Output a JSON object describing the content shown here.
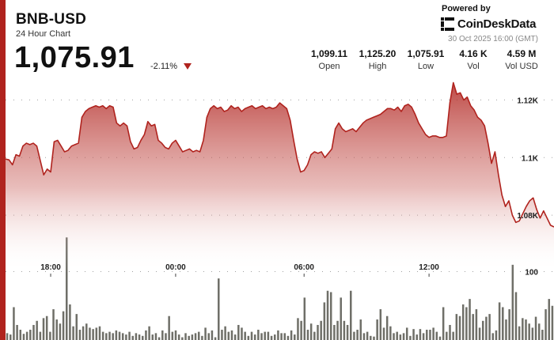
{
  "header": {
    "symbol": "BNB-USD",
    "subtitle": "24 Hour Chart",
    "price": "1,075.91",
    "change": "-2.11%",
    "change_icon": "down-triangle-icon",
    "powered_by": "Powered by",
    "brand": "CoinDeskData",
    "brand_icon": "coindesk-logo-icon",
    "datestamp": "30 Oct 2025 16:00 (GMT)"
  },
  "stats": [
    {
      "value": "1,099.11",
      "label": "Open"
    },
    {
      "value": "1,125.20",
      "label": "High"
    },
    {
      "value": "1,075.91",
      "label": "Low"
    },
    {
      "value": "4.16 K",
      "label": "Vol"
    },
    {
      "value": "4.59 M",
      "label": "Vol USD"
    }
  ],
  "colors": {
    "accent": "#b0231e",
    "line": "#b0231e",
    "volume": "#6f6f68"
  },
  "chart_data": [
    {
      "type": "area",
      "y_ticks": [
        1080,
        1100,
        1120
      ],
      "y_tick_labels": [
        "1.08K",
        "1.1K",
        "1.12K"
      ],
      "ylim": [
        1060,
        1130
      ],
      "x_ticks": [
        "18:00",
        "00:00",
        "06:00",
        "12:00"
      ],
      "grid": true,
      "series": [
        {
          "values": [
            1099.5,
            1099.2,
            1097.5,
            1101,
            1100.5,
            1104,
            1105,
            1104.5,
            1105,
            1104,
            1099,
            1094,
            1096,
            1095,
            1105.5,
            1106,
            1104,
            1102,
            1102.5,
            1104,
            1104.5,
            1105,
            1114,
            1116,
            1117,
            1117.5,
            1118,
            1117.5,
            1118,
            1117,
            1118,
            1117.5,
            1112,
            1111,
            1112,
            1111,
            1105.5,
            1103,
            1103.5,
            1106,
            1108,
            1112.5,
            1111,
            1111.5,
            1106,
            1105,
            1103.5,
            1103,
            1105,
            1106,
            1104,
            1102,
            1102.5,
            1103,
            1102,
            1102.5,
            1102,
            1106,
            1114,
            1117,
            1118,
            1117,
            1117.5,
            1116,
            1116.5,
            1118,
            1117,
            1117.5,
            1116,
            1117,
            1117.5,
            1118,
            1117,
            1117.5,
            1118,
            1117,
            1117.5,
            1117,
            1117.5,
            1119,
            1118,
            1117,
            1113,
            1106,
            1099.5,
            1095,
            1095.5,
            1097.5,
            1101,
            1102,
            1101.5,
            1102,
            1100,
            1101.5,
            1103,
            1110,
            1112,
            1110,
            1109,
            1109.5,
            1110,
            1109,
            1110.5,
            1112,
            1113,
            1113.5,
            1114,
            1114.5,
            1115,
            1116,
            1117,
            1117,
            1116.5,
            1117.5,
            1116,
            1118,
            1118.5,
            1117.5,
            1115,
            1112,
            1110,
            1108,
            1107,
            1107.5,
            1107.5,
            1107,
            1107,
            1107.5,
            1119,
            1126,
            1122,
            1122.5,
            1120,
            1121,
            1118,
            1116.5,
            1114,
            1113,
            1111,
            1105,
            1098,
            1102,
            1094,
            1087,
            1083,
            1085,
            1080,
            1077.5,
            1078,
            1080.5,
            1083,
            1085,
            1086,
            1082,
            1079,
            1081.5,
            1079,
            1076.5,
            1075.91
          ]
        }
      ]
    },
    {
      "type": "bar",
      "y_ticks": [
        100
      ],
      "y_tick_labels": [
        "100"
      ],
      "ylim": [
        0,
        185
      ],
      "values": [
        10,
        8,
        48,
        22,
        15,
        9,
        12,
        15,
        22,
        28,
        12,
        32,
        35,
        12,
        45,
        30,
        24,
        42,
        150,
        52,
        20,
        38,
        15,
        20,
        24,
        18,
        16,
        18,
        20,
        12,
        10,
        12,
        10,
        14,
        12,
        10,
        8,
        12,
        6,
        10,
        8,
        6,
        14,
        20,
        8,
        10,
        4,
        14,
        10,
        35,
        12,
        14,
        8,
        4,
        10,
        6,
        8,
        10,
        12,
        6,
        18,
        10,
        14,
        4,
        90,
        15,
        20,
        12,
        14,
        8,
        22,
        18,
        12,
        6,
        12,
        8,
        15,
        10,
        12,
        12,
        6,
        8,
        14,
        10,
        10,
        6,
        14,
        8,
        32,
        28,
        62,
        15,
        24,
        12,
        22,
        28,
        55,
        72,
        70,
        22,
        28,
        62,
        28,
        22,
        72,
        12,
        15,
        30,
        10,
        12,
        6,
        5,
        30,
        45,
        18,
        35,
        20,
        10,
        12,
        8,
        10,
        18,
        6,
        16,
        8,
        16,
        10,
        15,
        15,
        18,
        12,
        5,
        48,
        12,
        22,
        12,
        38,
        35,
        52,
        48,
        60,
        38,
        45,
        18,
        28,
        34,
        38,
        10,
        14,
        55,
        48,
        30,
        45,
        110,
        70,
        20,
        32,
        30,
        24,
        18,
        34,
        24,
        15,
        45,
        60,
        50
      ]
    }
  ]
}
